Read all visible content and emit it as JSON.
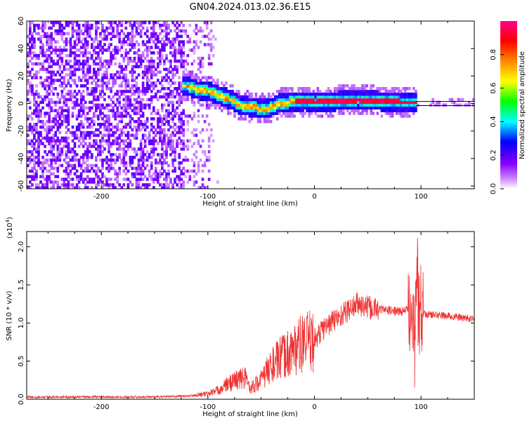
{
  "title": "GN04.2024.013.02.36.E15",
  "chart_data": [
    {
      "type": "heatmap",
      "xlabel": "Height of straight line (km)",
      "ylabel": "Frequency (Hz)",
      "xlim": [
        -270,
        150
      ],
      "ylim": [
        -62,
        60
      ],
      "xticks": [
        -200,
        -100,
        0,
        100
      ],
      "yticks": [
        60,
        40,
        20,
        0,
        -20,
        -40,
        -60
      ],
      "colorbar": {
        "label": "Normalized spectral amplitude",
        "range": [
          0,
          1
        ],
        "ticks": [
          0.0,
          0.2,
          0.4,
          0.6,
          0.8
        ],
        "tick_labels": [
          "0.0",
          "0.2",
          "0.4",
          "0.6",
          "0.8"
        ],
        "colors": [
          "#ffffff",
          "#a020f0",
          "#0000ff",
          "#00ffff",
          "#00ff00",
          "#ffff00",
          "#ff8000",
          "#ff0000",
          "#ff0080"
        ]
      },
      "ridge": [
        {
          "x": -120,
          "f": 12
        },
        {
          "x": -110,
          "f": 9
        },
        {
          "x": -100,
          "f": 8
        },
        {
          "x": -90,
          "f": 5
        },
        {
          "x": -80,
          "f": 2
        },
        {
          "x": -70,
          "f": -2
        },
        {
          "x": -55,
          "f": -4
        },
        {
          "x": -45,
          "f": -5
        },
        {
          "x": -35,
          "f": -1
        },
        {
          "x": -25,
          "f": 0
        },
        {
          "x": -10,
          "f": 1
        },
        {
          "x": 0,
          "f": 0
        },
        {
          "x": 20,
          "f": 1
        },
        {
          "x": 40,
          "f": 2
        },
        {
          "x": 60,
          "f": 1
        },
        {
          "x": 80,
          "f": 0
        },
        {
          "x": 95,
          "f": 0
        }
      ],
      "reference_line_f": 0
    },
    {
      "type": "line",
      "xlabel": "Height of straight line (km)",
      "ylabel": "SNR (10 * v/v)",
      "y_multiplier": "(x10",
      "y_multiplier_exp": "4",
      "y_multiplier_close": ")",
      "xlim": [
        -270,
        150
      ],
      "ylim": [
        0,
        2.2
      ],
      "xticks": [
        -200,
        -100,
        0,
        100
      ],
      "yticks": [
        0.0,
        0.5,
        1.0,
        1.5,
        2.0
      ],
      "ytick_labels": [
        "0.0",
        "0.5",
        "1.0",
        "1.5",
        "2.0"
      ],
      "color": "#ee3333",
      "envelope": [
        {
          "x": -270,
          "y": 0.03
        },
        {
          "x": -160,
          "y": 0.03
        },
        {
          "x": -120,
          "y": 0.04
        },
        {
          "x": -100,
          "y": 0.07
        },
        {
          "x": -90,
          "y": 0.12
        },
        {
          "x": -75,
          "y": 0.25
        },
        {
          "x": -65,
          "y": 0.28
        },
        {
          "x": -60,
          "y": 0.15
        },
        {
          "x": -50,
          "y": 0.25
        },
        {
          "x": -40,
          "y": 0.45
        },
        {
          "x": -30,
          "y": 0.55
        },
        {
          "x": -15,
          "y": 0.7
        },
        {
          "x": 0,
          "y": 0.78
        },
        {
          "x": 10,
          "y": 0.95
        },
        {
          "x": 25,
          "y": 1.1
        },
        {
          "x": 40,
          "y": 1.25
        },
        {
          "x": 50,
          "y": 1.2
        },
        {
          "x": 60,
          "y": 1.18
        },
        {
          "x": 80,
          "y": 1.15
        },
        {
          "x": 90,
          "y": 1.18
        },
        {
          "x": 100,
          "y": 1.12
        },
        {
          "x": 120,
          "y": 1.1
        },
        {
          "x": 150,
          "y": 1.05
        }
      ]
    }
  ]
}
